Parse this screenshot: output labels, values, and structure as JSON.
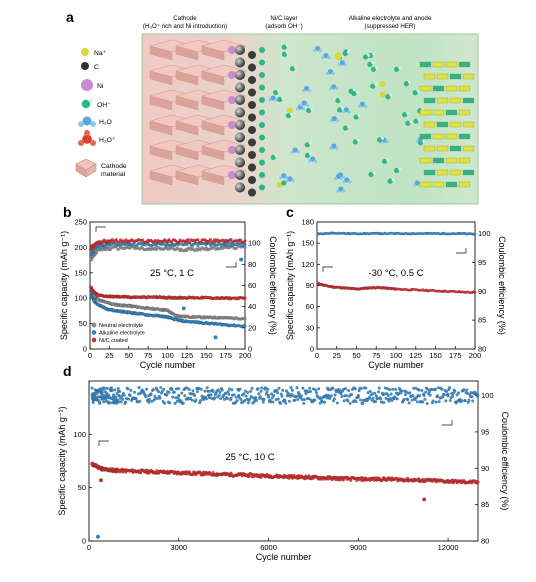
{
  "panel_a": {
    "letter": "a",
    "headers": [
      {
        "line1": "Cathode",
        "line2": "(H₃O⁺ rich and Ni introduction)"
      },
      {
        "line1": "Ni/C layer",
        "line2": "(adsorb OH⁻)"
      },
      {
        "line1": "Alkaline electrolyte and anode",
        "line2": "(suppressed HER)"
      }
    ],
    "legend": [
      {
        "label": "Na⁺",
        "color": "#d8d83a",
        "icon": "sphere-icon"
      },
      {
        "label": "C",
        "color": "#333333",
        "icon": "sphere-icon"
      },
      {
        "label": "Ni",
        "color": "#c98ad0",
        "icon": "sphere-icon"
      },
      {
        "label": "OH⁻",
        "color": "#2fb58c",
        "icon": "hydroxide-icon"
      },
      {
        "label": "H₂O",
        "color": "#5aa7dd",
        "icon": "water-molecule-icon"
      },
      {
        "label": "H₃O⁺",
        "color": "#d9412b",
        "icon": "hydronium-icon"
      },
      {
        "label": "Cathode material",
        "color": "#e8b7b0",
        "icon": "cathode-crystal-icon"
      }
    ]
  },
  "chart_data": [
    {
      "panel": "b",
      "type": "scatter",
      "xlabel": "Cycle number",
      "ylabel": "Specific capacity (mAh g⁻¹)",
      "y2label": "Coulombic efficiency (%)",
      "xlim": [
        0,
        200
      ],
      "ylim": [
        0,
        250
      ],
      "y2lim": [
        0,
        120
      ],
      "xticks": [
        0,
        25,
        50,
        75,
        100,
        125,
        150,
        175,
        200
      ],
      "yticks": [
        0,
        50,
        100,
        150,
        200,
        250
      ],
      "y2ticks": [
        0,
        20,
        40,
        60,
        80,
        100
      ],
      "condition": "25 °C, 1 C",
      "legend": [
        {
          "name": "Neutral electrolyte",
          "color": "#8c8c8c"
        },
        {
          "name": "Alkaline electrolyte",
          "color": "#2f86c5"
        },
        {
          "name": "Ni/C coated",
          "color": "#d42a2a"
        }
      ],
      "series": [
        {
          "name": "Neutral electrolyte",
          "axis": "capacity",
          "color": "#8c8c8c",
          "x": [
            1,
            5,
            10,
            20,
            30,
            40,
            50,
            60,
            75,
            90,
            100,
            110,
            120,
            135,
            150,
            165,
            180,
            200
          ],
          "y": [
            120,
            105,
            98,
            92,
            88,
            86,
            85,
            83,
            80,
            78,
            76,
            66,
            64,
            63,
            62,
            62,
            61,
            60
          ]
        },
        {
          "name": "Alkaline electrolyte",
          "axis": "capacity",
          "color": "#2f86c5",
          "x": [
            1,
            5,
            10,
            20,
            30,
            40,
            50,
            60,
            75,
            90,
            100,
            110,
            120,
            135,
            150,
            165,
            180,
            200
          ],
          "y": [
            110,
            95,
            88,
            80,
            76,
            74,
            72,
            70,
            67,
            65,
            63,
            58,
            55,
            53,
            51,
            49,
            47,
            45
          ]
        },
        {
          "name": "Ni/C coated",
          "axis": "capacity",
          "color": "#d42a2a",
          "x": [
            1,
            5,
            10,
            20,
            30,
            40,
            50,
            60,
            75,
            90,
            100,
            110,
            120,
            135,
            150,
            165,
            180,
            200
          ],
          "y": [
            122,
            112,
            106,
            104,
            103,
            103,
            102,
            102,
            102,
            102,
            101,
            101,
            101,
            101,
            101,
            100,
            100,
            100
          ]
        },
        {
          "name": "Neutral electrolyte",
          "axis": "efficiency",
          "color": "#8c8c8c",
          "x": [
            1,
            10,
            25,
            50,
            75,
            100,
            125,
            150,
            175,
            200
          ],
          "y": [
            85,
            94,
            95,
            96,
            94,
            95,
            94,
            95,
            96,
            96
          ]
        },
        {
          "name": "Alkaline electrolyte",
          "axis": "efficiency",
          "color": "#2f86c5",
          "x": [
            1,
            10,
            25,
            50,
            75,
            100,
            125,
            150,
            175,
            200
          ],
          "y": [
            90,
            98,
            99,
            99,
            99,
            99,
            99,
            99,
            99,
            99
          ]
        },
        {
          "name": "Ni/C coated",
          "axis": "efficiency",
          "color": "#d42a2a",
          "x": [
            1,
            10,
            25,
            50,
            75,
            100,
            125,
            150,
            175,
            200
          ],
          "y": [
            95,
            101,
            102,
            102,
            102,
            102,
            102,
            102,
            102,
            102
          ]
        }
      ],
      "outliers": [
        {
          "x": 118,
          "y": 208,
          "color": "#8c8c8c"
        },
        {
          "x": 121,
          "y": 80,
          "color": "#2f86c5"
        },
        {
          "x": 162,
          "y": 23,
          "color": "#2f86c5"
        },
        {
          "x": 195,
          "y": 176,
          "color": "#2f86c5"
        }
      ]
    },
    {
      "panel": "c",
      "type": "scatter",
      "xlabel": "Cycle number",
      "ylabel": "Specific capacity (mAh g⁻¹)",
      "y2label": "Coulombic efficiency (%)",
      "xlim": [
        0,
        200
      ],
      "ylim": [
        0,
        180
      ],
      "y2lim": [
        80,
        102
      ],
      "xticks": [
        0,
        25,
        50,
        75,
        100,
        125,
        150,
        175,
        200
      ],
      "yticks": [
        0,
        30,
        60,
        90,
        120,
        150,
        180
      ],
      "y2ticks": [
        80,
        85,
        90,
        95,
        100
      ],
      "condition": "-30 °C, 0.5 C",
      "series": [
        {
          "name": "capacity",
          "axis": "capacity",
          "color": "#d42a2a",
          "x": [
            1,
            10,
            20,
            30,
            40,
            50,
            60,
            70,
            80,
            90,
            100,
            120,
            140,
            160,
            180,
            200
          ],
          "y": [
            93,
            90,
            88,
            87,
            86,
            85,
            86,
            87,
            87,
            86,
            85,
            84,
            83,
            82,
            81,
            80
          ]
        },
        {
          "name": "efficiency",
          "axis": "efficiency",
          "color": "#2f86c5",
          "x": [
            1,
            20,
            40,
            60,
            80,
            100,
            120,
            140,
            160,
            180,
            200
          ],
          "y": [
            99.9,
            100.1,
            100.0,
            100.0,
            100.0,
            100.0,
            100.0,
            100.0,
            100.0,
            100.0,
            99.9
          ]
        }
      ]
    },
    {
      "panel": "d",
      "type": "scatter",
      "xlabel": "Cycle number",
      "ylabel": "Specific capacity (mAh g⁻¹)",
      "y2label": "Coulombic efficiency (%)",
      "xlim": [
        0,
        13000
      ],
      "ylim": [
        0,
        150
      ],
      "y2lim": [
        80,
        102
      ],
      "xticks": [
        0,
        3000,
        6000,
        9000,
        12000
      ],
      "yticks": [
        0,
        50,
        100
      ],
      "y2ticks": [
        80,
        85,
        90,
        95,
        100
      ],
      "condition": "25 °C, 10 C",
      "series": [
        {
          "name": "capacity",
          "axis": "capacity",
          "color": "#d42a2a",
          "x": [
            100,
            500,
            1000,
            2000,
            3000,
            4000,
            5000,
            6000,
            7000,
            8000,
            9000,
            10000,
            11000,
            12000,
            13000
          ],
          "y": [
            72,
            67,
            66,
            65,
            64,
            63,
            62,
            61,
            60,
            59,
            58,
            58,
            57,
            56,
            55
          ]
        },
        {
          "name": "efficiency",
          "axis": "efficiency",
          "color": "#2f86c5",
          "x": [
            100,
            500,
            1000,
            2000,
            3000,
            4000,
            5000,
            6000,
            7000,
            8000,
            9000,
            10000,
            11000,
            12000,
            13000
          ],
          "y": [
            100,
            100,
            100,
            100,
            100,
            100,
            100,
            100,
            100,
            100,
            100,
            100,
            100,
            100,
            100
          ]
        }
      ],
      "outliers": [
        {
          "x": 300,
          "y": 4,
          "color": "#2f86c5"
        },
        {
          "x": 400,
          "y": 57,
          "color": "#d42a2a"
        },
        {
          "x": 11200,
          "y": 39,
          "color": "#d42a2a"
        }
      ]
    }
  ]
}
